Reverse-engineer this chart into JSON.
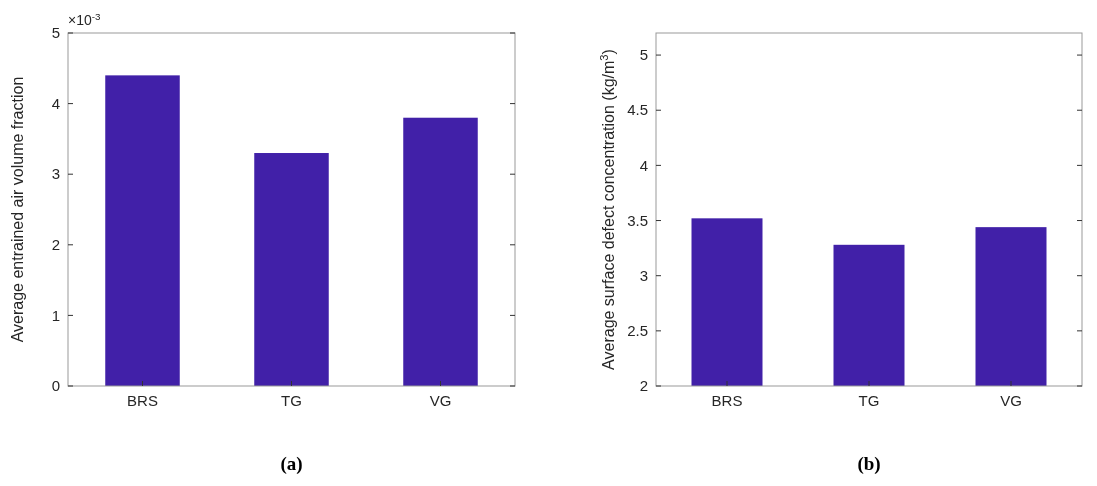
{
  "chart_data": [
    {
      "type": "bar",
      "ylabel": "Average entrained air volume fraction",
      "categories": [
        "BRS",
        "TG",
        "VG"
      ],
      "values": [
        4.4,
        3.3,
        3.8
      ],
      "color": "#4120a8",
      "ylim": [
        0,
        5
      ],
      "yticks": [
        0,
        1,
        2,
        3,
        4,
        5
      ],
      "annotations": [
        "×10$^{-3}$",
        "(a)"
      ]
    },
    {
      "type": "bar",
      "ylabel": "Average surface defect concentration (kg/m$^{3}$)",
      "categories": [
        "BRS",
        "TG",
        "VG"
      ],
      "values": [
        3.52,
        3.28,
        3.44
      ],
      "color": "#4120a8",
      "ylim": [
        2,
        5.2
      ],
      "yticks": [
        2,
        2.5,
        3,
        3.5,
        4,
        4.5,
        5
      ],
      "annotations": [
        "(b)"
      ]
    }
  ]
}
